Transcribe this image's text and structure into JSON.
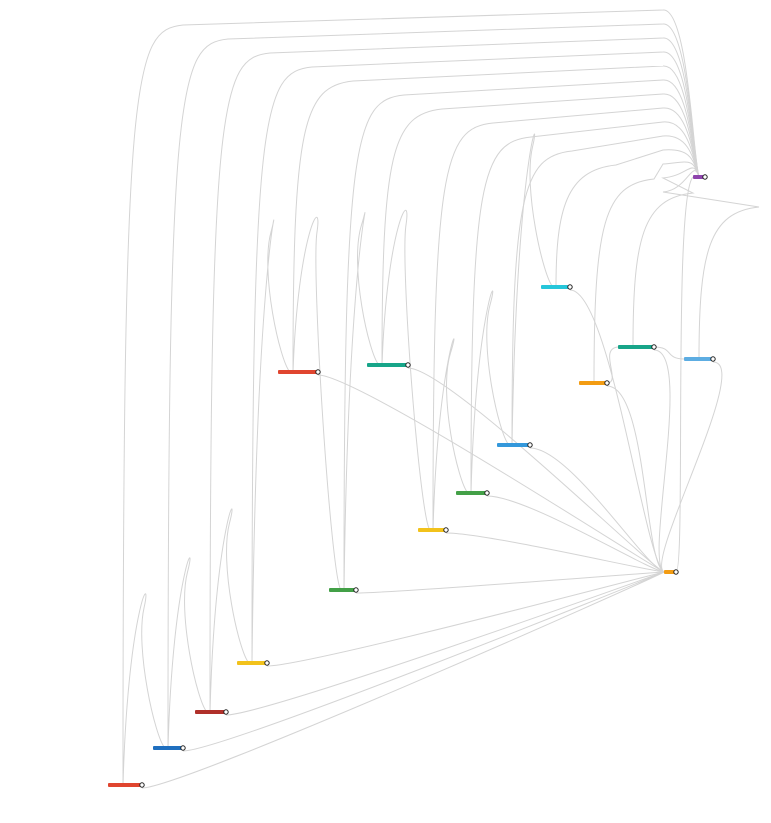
{
  "nodes": [
    {
      "color": "#e0452f"
    },
    {
      "color": "#1f6fbf"
    },
    {
      "color": "#b0302a"
    },
    {
      "color": "#f2c21b"
    },
    {
      "color": "#e0452f"
    },
    {
      "color": "#43a047"
    },
    {
      "color": "#17a589"
    },
    {
      "color": "#f2c21b"
    },
    {
      "color": "#43a047"
    },
    {
      "color": "#3498db"
    },
    {
      "color": "#26c6da"
    },
    {
      "color": "#f39c12"
    },
    {
      "color": "#17a589"
    },
    {
      "color": "#5dade2"
    },
    {
      "color": "#f39c12"
    },
    {
      "color": "#8e44ad"
    }
  ]
}
